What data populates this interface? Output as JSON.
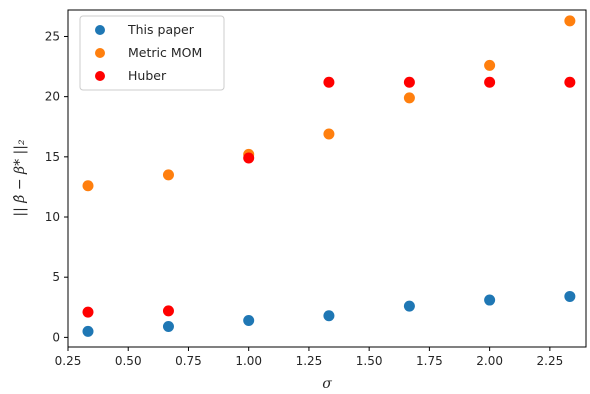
{
  "chart_data": {
    "type": "scatter",
    "xlabel": "σ",
    "ylabel": "|| β̂ − β* ||₂",
    "xlim": [
      0.25,
      2.4
    ],
    "ylim": [
      -0.8,
      27.2
    ],
    "x_ticks": [
      0.25,
      0.5,
      0.75,
      1.0,
      1.25,
      1.5,
      1.75,
      2.0,
      2.25
    ],
    "x_tick_labels": [
      "0.25",
      "0.50",
      "0.75",
      "1.00",
      "1.25",
      "1.50",
      "1.75",
      "2.00",
      "2.25"
    ],
    "y_ticks": [
      0,
      5,
      10,
      15,
      20,
      25
    ],
    "y_tick_labels": [
      "0",
      "5",
      "10",
      "15",
      "20",
      "25"
    ],
    "grid": false,
    "legend_position": "top-left",
    "x": [
      0.333,
      0.667,
      1.0,
      1.333,
      1.667,
      2.0,
      2.333
    ],
    "series": [
      {
        "name": "This paper",
        "color": "#1f77b4",
        "values": [
          0.5,
          0.9,
          1.4,
          1.8,
          2.6,
          3.1,
          3.4
        ]
      },
      {
        "name": "Metric MOM",
        "color": "#ff7f0e",
        "values": [
          12.6,
          13.5,
          15.2,
          16.9,
          19.9,
          22.6,
          26.3
        ]
      },
      {
        "name": "Huber",
        "color": "#ff0000",
        "values": [
          2.1,
          2.2,
          14.9,
          21.2,
          21.2,
          21.2,
          21.2
        ]
      }
    ]
  }
}
